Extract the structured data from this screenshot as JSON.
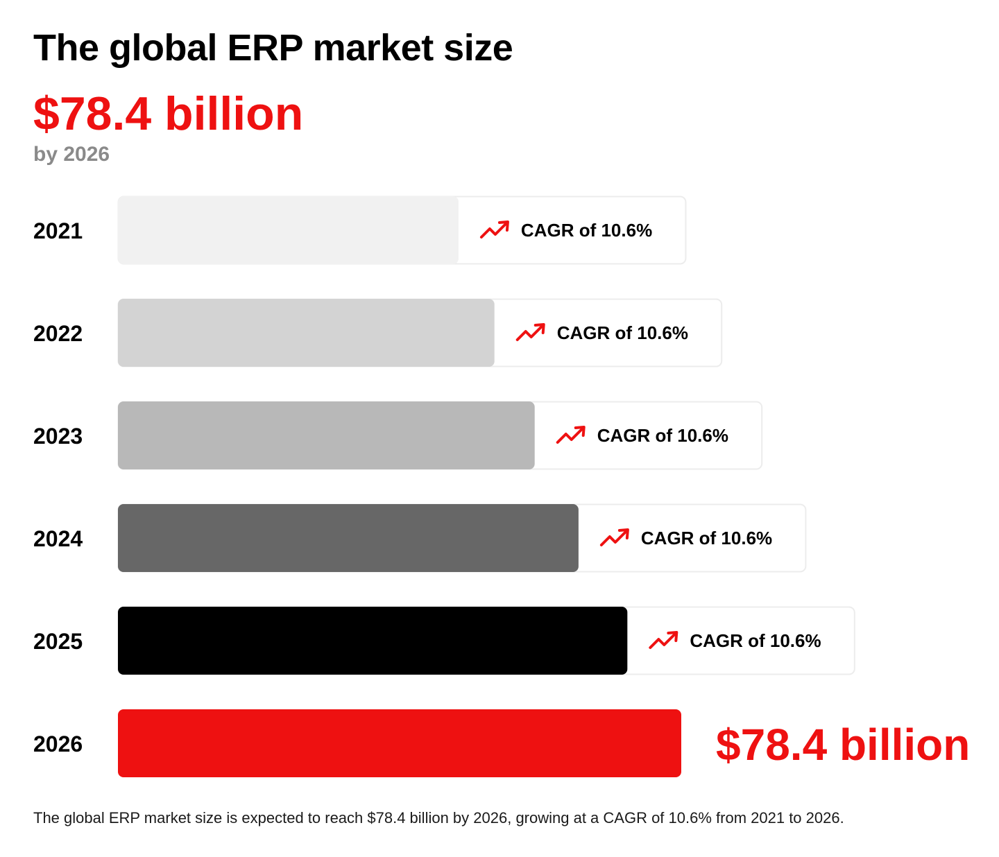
{
  "title": "The global ERP market size",
  "headline": {
    "value": "$78.4 billion",
    "subtitle": "by 2026"
  },
  "colors": {
    "accent": "#ee1111",
    "bar_2021": "#f1f1f1",
    "bar_2022": "#d3d3d3",
    "bar_2023": "#b8b8b8",
    "bar_2024": "#676767",
    "bar_2025": "#000000",
    "bar_2026": "#ee1111"
  },
  "chart_data": {
    "type": "bar",
    "orientation": "horizontal",
    "categories": [
      "2021",
      "2022",
      "2023",
      "2024",
      "2025",
      "2026"
    ],
    "values": [
      47.4,
      52.4,
      58.0,
      64.1,
      70.9,
      78.4
    ],
    "unit": "billion USD",
    "xlim": [
      0,
      78.4
    ],
    "grid": false,
    "bar_labels": [
      "CAGR of 10.6%",
      "CAGR of 10.6%",
      "CAGR of 10.6%",
      "CAGR of 10.6%",
      "CAGR of 10.6%",
      "$78.4 billion"
    ],
    "label_icon": "trending-up-icon"
  },
  "footnote": "The global ERP market size is expected to reach $78.4 billion by 2026, growing at a CAGR of 10.6% from 2021 to 2026."
}
